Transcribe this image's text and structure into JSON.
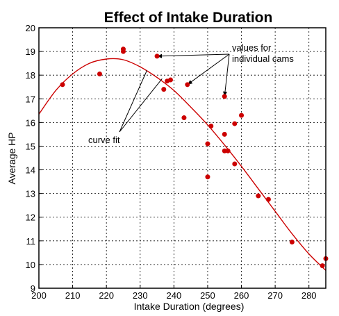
{
  "chart_data": {
    "type": "scatter",
    "title": "Effect of Intake Duration",
    "xlabel": "Intake Duration (degrees)",
    "ylabel": "Average HP",
    "xlim": [
      200,
      285
    ],
    "ylim": [
      9,
      20
    ],
    "x_ticks": [
      "200",
      "210",
      "220",
      "230",
      "240",
      "250",
      "260",
      "270",
      "280"
    ],
    "y_ticks": [
      "9",
      "10",
      "11",
      "12",
      "13",
      "14",
      "15",
      "16",
      "17",
      "18",
      "19",
      "20"
    ],
    "grid": true,
    "series": [
      {
        "kind": "points",
        "color": "#cc0000",
        "points": [
          [
            207,
            17.6
          ],
          [
            218,
            18.05
          ],
          [
            225,
            19.0
          ],
          [
            225,
            19.1
          ],
          [
            235,
            18.8
          ],
          [
            237,
            17.4
          ],
          [
            238,
            17.75
          ],
          [
            239,
            17.8
          ],
          [
            244,
            17.6
          ],
          [
            243,
            16.2
          ],
          [
            250,
            15.1
          ],
          [
            250,
            13.7
          ],
          [
            251,
            15.85
          ],
          [
            255,
            17.1
          ],
          [
            255,
            15.5
          ],
          [
            255,
            14.8
          ],
          [
            256,
            14.8
          ],
          [
            258,
            15.95
          ],
          [
            258,
            14.25
          ],
          [
            260,
            16.3
          ],
          [
            265,
            12.9
          ],
          [
            268,
            12.75
          ],
          [
            275,
            10.95
          ],
          [
            284,
            9.95
          ],
          [
            285,
            10.25
          ]
        ]
      },
      {
        "kind": "curve-fit",
        "color": "#cc0000",
        "points": [
          [
            200,
            16.35
          ],
          [
            205,
            17.35
          ],
          [
            210,
            18.05
          ],
          [
            215,
            18.5
          ],
          [
            220,
            18.68
          ],
          [
            225,
            18.65
          ],
          [
            230,
            18.35
          ],
          [
            235,
            17.9
          ],
          [
            240,
            17.35
          ],
          [
            245,
            16.65
          ],
          [
            250,
            15.9
          ],
          [
            255,
            15.05
          ],
          [
            260,
            14.15
          ],
          [
            265,
            13.2
          ],
          [
            270,
            12.25
          ],
          [
            275,
            11.3
          ],
          [
            280,
            10.45
          ],
          [
            285,
            9.75
          ]
        ]
      }
    ],
    "annotations": {
      "values_label_line1": "values for",
      "values_label_line2": "individual cams",
      "curve_label": "curve fit"
    }
  }
}
